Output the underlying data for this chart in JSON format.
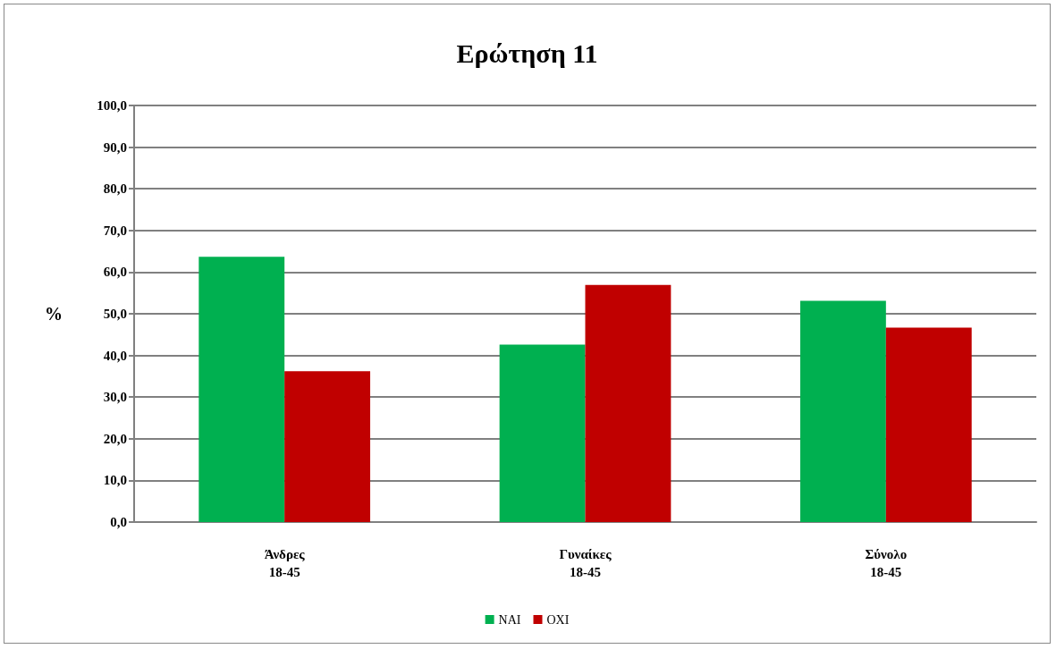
{
  "chart_data": {
    "type": "bar",
    "title": "Ερώτηση 11",
    "ylabel": "%",
    "categories": [
      "Άνδρες\n18-45",
      "Γυναίκες\n18-45",
      "Σύνολο\n18-45"
    ],
    "series": [
      {
        "name": "ΝΑΙ",
        "color": "#00b050",
        "values": [
          63.7,
          42.6,
          53.1
        ]
      },
      {
        "name": "ΟΧΙ",
        "color": "#c00000",
        "values": [
          36.2,
          56.9,
          46.7
        ]
      }
    ],
    "ylim": [
      0,
      100
    ],
    "yticks": [
      {
        "value": 0,
        "label": "0,0"
      },
      {
        "value": 10,
        "label": "10,0"
      },
      {
        "value": 20,
        "label": "20,0"
      },
      {
        "value": 30,
        "label": "30,0"
      },
      {
        "value": 40,
        "label": "40,0"
      },
      {
        "value": 50,
        "label": "50,0"
      },
      {
        "value": 60,
        "label": "60,0"
      },
      {
        "value": 70,
        "label": "70,0"
      },
      {
        "value": 80,
        "label": "80,0"
      },
      {
        "value": 90,
        "label": "90,0"
      },
      {
        "value": 100,
        "label": "100,0"
      }
    ],
    "grid": true,
    "legend": "bottom"
  }
}
